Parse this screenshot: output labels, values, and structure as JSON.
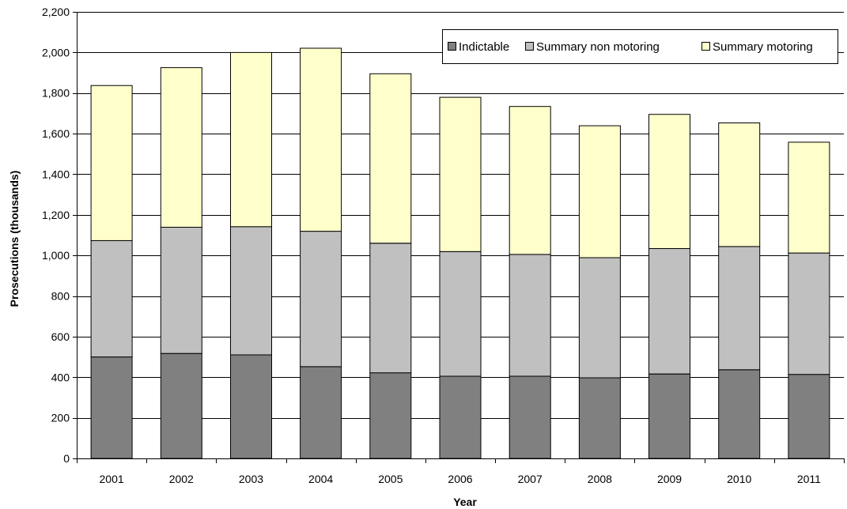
{
  "chart_data": {
    "type": "bar",
    "stacked": true,
    "categories": [
      "2001",
      "2002",
      "2003",
      "2004",
      "2005",
      "2006",
      "2007",
      "2008",
      "2009",
      "2010",
      "2011"
    ],
    "series": [
      {
        "name": "Indictable",
        "color": "#808080",
        "values": [
          500,
          517,
          510,
          452,
          422,
          405,
          405,
          397,
          416,
          437,
          414
        ]
      },
      {
        "name": "Summary non motoring",
        "color": "#c0c0c0",
        "values": [
          573,
          622,
          632,
          667,
          638,
          614,
          600,
          592,
          618,
          607,
          598
        ]
      },
      {
        "name": "Summary motoring",
        "color": "#ffffcc",
        "values": [
          764,
          786,
          858,
          902,
          835,
          760,
          729,
          650,
          661,
          609,
          546
        ]
      }
    ],
    "xlabel": "Year",
    "ylabel": "Prosecutions (thousands)",
    "ylim": [
      0,
      2200
    ],
    "yticks": [
      0,
      200,
      400,
      600,
      800,
      1000,
      1200,
      1400,
      1600,
      1800,
      2000,
      2200
    ],
    "ytick_labels": [
      "0",
      "200",
      "400",
      "600",
      "800",
      "1,000",
      "1,200",
      "1,400",
      "1,600",
      "1,800",
      "2,000",
      "2,200"
    ],
    "grid": true,
    "legend_position": "top-right"
  }
}
